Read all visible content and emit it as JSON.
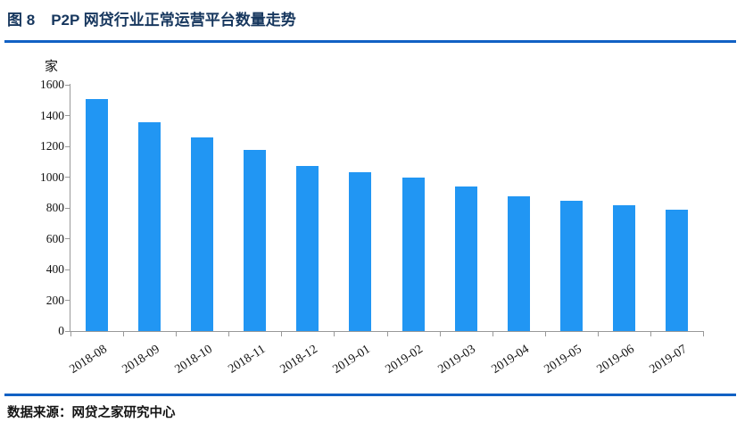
{
  "header": {
    "figure_label": "图 8",
    "title": "P2P 网贷行业正常运营平台数量走势"
  },
  "footer": {
    "source_label": "数据来源：网贷之家研究中心"
  },
  "colors": {
    "accent_rule": "#1161C4",
    "bar": "#2196F3",
    "axis": "#999999",
    "title_text": "#17375E"
  },
  "chart_data": {
    "type": "bar",
    "title": "P2P 网贷行业正常运营平台数量走势",
    "unit_label": "家",
    "xlabel": "",
    "ylabel": "家",
    "categories": [
      "2018-08",
      "2018-09",
      "2018-10",
      "2018-11",
      "2018-12",
      "2019-01",
      "2019-02",
      "2019-03",
      "2019-04",
      "2019-05",
      "2019-06",
      "2019-07"
    ],
    "values": [
      1505,
      1355,
      1260,
      1175,
      1075,
      1030,
      995,
      940,
      875,
      845,
      815,
      790
    ],
    "ylim": [
      0,
      1600
    ],
    "yticks": [
      0,
      200,
      400,
      600,
      800,
      1000,
      1200,
      1400,
      1600
    ],
    "grid": false,
    "legend_position": "none"
  }
}
